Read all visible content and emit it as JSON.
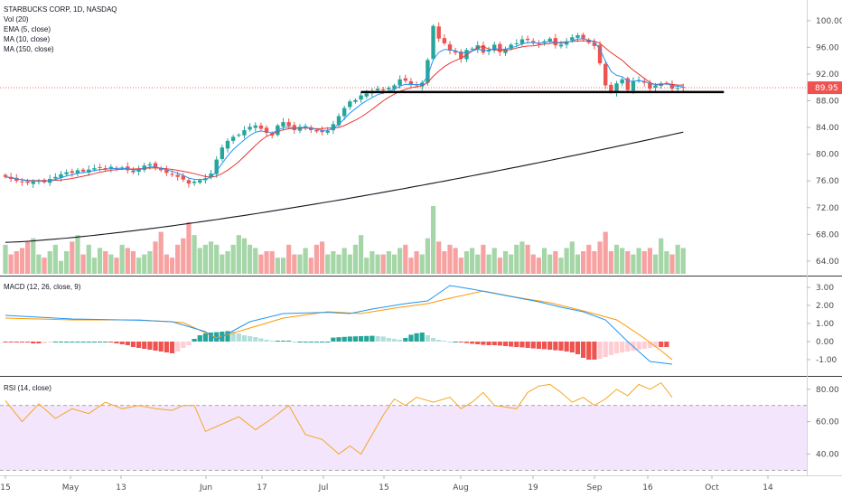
{
  "legend": {
    "main": [
      "STARBUCKS CORP, 1D, NASDAQ",
      "Vol (20)",
      "EMA (5, close)",
      "MA (10, close)",
      "MA (150, close)"
    ],
    "macd": "MACD (12, 26, close, 9)",
    "rsi": "RSI (14, close)"
  },
  "last_price_label": "89.95",
  "colors": {
    "up": "#26a69a",
    "down": "#ef5350",
    "vol_up": "#a5d6a7",
    "vol_down": "#f7a1a1",
    "ema": "#2196f3",
    "ma10": "#e53935",
    "ma150": "#131722",
    "macd_line": "#2196f3",
    "signal_line": "#ff9800",
    "rsi_line": "#f5a623",
    "rsi_band": "#f3e5fc",
    "price_tag": "#ef5350"
  },
  "chart_data": [
    {
      "type": "candlestick",
      "title": "STARBUCKS CORP, 1D, NASDAQ",
      "y_ticks": [
        "100.00",
        "96.00",
        "92.00",
        "88.00",
        "84.00",
        "80.00",
        "76.00",
        "72.00",
        "68.00",
        "64.00"
      ],
      "ylim": [
        62.5,
        102
      ],
      "x_ticks": [
        "15",
        "May",
        "13",
        "Jun",
        "17",
        "Jul",
        "15",
        "Aug",
        "19",
        "Sep",
        "16",
        "Oct",
        "14"
      ],
      "last_price": 89.95,
      "support_line": 89.3,
      "closes": [
        76.6,
        76.3,
        76.0,
        75.8,
        75.7,
        75.9,
        76.0,
        75.8,
        76.3,
        76.6,
        77.0,
        77.3,
        77.2,
        77.6,
        77.4,
        77.7,
        77.9,
        78.0,
        77.8,
        78.1,
        77.9,
        78.0,
        77.6,
        77.3,
        77.8,
        78.3,
        78.5,
        78.0,
        77.6,
        77.2,
        76.9,
        76.6,
        76.2,
        75.6,
        75.9,
        76.1,
        76.4,
        77.1,
        79.2,
        81.0,
        82.0,
        82.6,
        82.9,
        83.6,
        84.1,
        84.3,
        83.8,
        83.2,
        82.8,
        84.3,
        84.8,
        84.2,
        83.6,
        84.1,
        84.2,
        83.6,
        83.4,
        83.3,
        83.5,
        84.5,
        85.7,
        86.9,
        87.9,
        88.1,
        88.8,
        89.1,
        89.4,
        89.8,
        89.6,
        89.9,
        90.3,
        91.2,
        91.0,
        90.4,
        90.3,
        90.7,
        94.1,
        99.2,
        97.3,
        96.6,
        95.5,
        95.2,
        94.3,
        95.6,
        95.8,
        96.3,
        95.2,
        95.6,
        96.4,
        95.3,
        95.8,
        96.4,
        96.6,
        97.2,
        97.1,
        96.7,
        96.5,
        96.9,
        97.3,
        96.3,
        96.4,
        96.9,
        97.5,
        97.8,
        97.3,
        96.7,
        96.2,
        93.6,
        90.3,
        89.4,
        90.6,
        91.2,
        89.6,
        90.9,
        91.1,
        90.7,
        89.8,
        90.3,
        90.6,
        90.6,
        89.8,
        89.9,
        89.95
      ],
      "ema5_approx": [
        75.4,
        95.6,
        89.9
      ],
      "ma150_range": [
        66.8,
        83.3
      ]
    },
    {
      "type": "bar",
      "title": "Vol (20)",
      "values": [
        0.9,
        0.6,
        0.7,
        0.8,
        1.0,
        1.1,
        0.6,
        0.5,
        0.7,
        0.9,
        0.4,
        0.7,
        1.0,
        1.2,
        0.6,
        0.9,
        0.5,
        0.8,
        0.7,
        0.6,
        0.5,
        0.9,
        0.8,
        0.7,
        0.5,
        0.6,
        0.7,
        1.0,
        1.3,
        0.6,
        0.5,
        0.9,
        1.1,
        1.6,
        1.2,
        0.8,
        0.9,
        1.0,
        0.9,
        0.6,
        0.7,
        0.9,
        1.2,
        1.1,
        0.9,
        0.8,
        0.6,
        0.7,
        0.7,
        0.5,
        0.5,
        0.9,
        0.6,
        0.6,
        0.8,
        0.5,
        0.9,
        1.0,
        0.6,
        0.7,
        0.6,
        0.8,
        0.6,
        0.9,
        1.2,
        0.5,
        0.7,
        0.6,
        0.6,
        0.7,
        0.6,
        0.8,
        0.9,
        0.5,
        0.7,
        0.6,
        1.1,
        2.1,
        1.0,
        0.7,
        0.9,
        0.8,
        0.5,
        0.7,
        0.8,
        0.6,
        0.9,
        0.6,
        0.8,
        0.5,
        0.7,
        0.6,
        0.9,
        1.0,
        0.9,
        0.6,
        0.5,
        0.8,
        0.6,
        0.7,
        0.5,
        0.8,
        1.0,
        0.6,
        0.7,
        0.9,
        0.7,
        1.0,
        1.3,
        0.7,
        0.9,
        0.8,
        0.7,
        0.6,
        0.8,
        0.7,
        0.8,
        0.6,
        1.1,
        0.7,
        0.6,
        0.9,
        0.8
      ]
    },
    {
      "type": "line",
      "title": "MACD (12, 26, close, 9)",
      "y_ticks": [
        "3.00",
        "2.00",
        "1.00",
        "0.00",
        "-1.00"
      ],
      "ylim": [
        -1.8,
        3.4
      ],
      "series": [
        {
          "name": "MACD",
          "points": [
            [
              0,
              1.45
            ],
            [
              12,
              1.25
            ],
            [
              24,
              1.18
            ],
            [
              30,
              1.1
            ],
            [
              36,
              0.55
            ],
            [
              38,
              0.1
            ],
            [
              44,
              1.1
            ],
            [
              50,
              1.55
            ],
            [
              58,
              1.62
            ],
            [
              62,
              1.55
            ],
            [
              66,
              1.8
            ],
            [
              72,
              2.1
            ],
            [
              76,
              2.25
            ],
            [
              80,
              3.1
            ],
            [
              84,
              2.9
            ],
            [
              90,
              2.55
            ],
            [
              96,
              2.2
            ],
            [
              100,
              1.9
            ],
            [
              104,
              1.65
            ],
            [
              108,
              1.2
            ],
            [
              112,
              0.0
            ],
            [
              116,
              -1.1
            ],
            [
              120,
              -1.25
            ]
          ]
        },
        {
          "name": "Signal",
          "points": [
            [
              0,
              1.3
            ],
            [
              12,
              1.2
            ],
            [
              24,
              1.2
            ],
            [
              32,
              1.05
            ],
            [
              38,
              0.2
            ],
            [
              44,
              0.75
            ],
            [
              50,
              1.3
            ],
            [
              58,
              1.65
            ],
            [
              64,
              1.55
            ],
            [
              70,
              1.85
            ],
            [
              76,
              2.1
            ],
            [
              80,
              2.4
            ],
            [
              86,
              2.8
            ],
            [
              92,
              2.45
            ],
            [
              98,
              2.15
            ],
            [
              104,
              1.7
            ],
            [
              110,
              1.2
            ],
            [
              114,
              0.4
            ],
            [
              118,
              -0.5
            ],
            [
              120,
              -1.0
            ]
          ]
        }
      ],
      "histogram": [
        -0.05,
        -0.05,
        -0.05,
        -0.05,
        -0.05,
        -0.1,
        -0.1,
        -0.08,
        -0.02,
        0.0,
        0.0,
        0.0,
        0.0,
        0.0,
        0.0,
        0.0,
        0.0,
        0.0,
        0.0,
        -0.05,
        -0.1,
        -0.15,
        -0.2,
        -0.3,
        -0.35,
        -0.4,
        -0.45,
        -0.5,
        -0.55,
        -0.6,
        -0.65,
        -0.55,
        -0.35,
        -0.2,
        0.15,
        0.35,
        0.45,
        0.5,
        0.52,
        0.55,
        0.58,
        0.55,
        0.45,
        0.35,
        0.3,
        0.25,
        0.18,
        0.1,
        0.05,
        0.05,
        0.05,
        0.05,
        0.0,
        0.0,
        0.0,
        0.0,
        0.0,
        0.0,
        0.0,
        0.22,
        0.24,
        0.26,
        0.28,
        0.29,
        0.3,
        0.31,
        0.32,
        0.3,
        0.28,
        0.2,
        0.15,
        0.1,
        0.2,
        0.38,
        0.46,
        0.5,
        0.35,
        0.2,
        0.1,
        0.05,
        0.0,
        0.0,
        -0.05,
        -0.08,
        -0.12,
        -0.15,
        -0.18,
        -0.2,
        -0.2,
        -0.22,
        -0.25,
        -0.28,
        -0.3,
        -0.32,
        -0.35,
        -0.38,
        -0.4,
        -0.42,
        -0.45,
        -0.48,
        -0.5,
        -0.55,
        -0.6,
        -0.7,
        -0.9,
        -1.0,
        -1.0,
        -0.95,
        -0.85,
        -0.75,
        -0.65,
        -0.6,
        -0.55,
        -0.5,
        -0.45,
        -0.4,
        -0.35,
        -0.3,
        -0.3,
        -0.3
      ]
    },
    {
      "type": "line",
      "title": "RSI (14, close)",
      "y_ticks": [
        "80.00",
        "60.00",
        "40.00"
      ],
      "ylim": [
        28,
        86
      ],
      "band": [
        30,
        70
      ],
      "points": [
        [
          0,
          73
        ],
        [
          3,
          60
        ],
        [
          6,
          71
        ],
        [
          9,
          62
        ],
        [
          12,
          68
        ],
        [
          15,
          65
        ],
        [
          18,
          72
        ],
        [
          21,
          68
        ],
        [
          24,
          70
        ],
        [
          27,
          68
        ],
        [
          30,
          67
        ],
        [
          32,
          70
        ],
        [
          34,
          70
        ],
        [
          36,
          54
        ],
        [
          38,
          57
        ],
        [
          42,
          63
        ],
        [
          45,
          55
        ],
        [
          48,
          62
        ],
        [
          51,
          70
        ],
        [
          54,
          52
        ],
        [
          57,
          49
        ],
        [
          60,
          40
        ],
        [
          62,
          45
        ],
        [
          64,
          40
        ],
        [
          66,
          52
        ],
        [
          68,
          64
        ],
        [
          70,
          74
        ],
        [
          72,
          70
        ],
        [
          74,
          75
        ],
        [
          77,
          72
        ],
        [
          80,
          75
        ],
        [
          82,
          68
        ],
        [
          84,
          72
        ],
        [
          86,
          78
        ],
        [
          88,
          70
        ],
        [
          90,
          69
        ],
        [
          92,
          68
        ],
        [
          94,
          78
        ],
        [
          96,
          82
        ],
        [
          98,
          83
        ],
        [
          100,
          78
        ],
        [
          102,
          72
        ],
        [
          104,
          75
        ],
        [
          106,
          70
        ],
        [
          108,
          74
        ],
        [
          110,
          80
        ],
        [
          112,
          76
        ],
        [
          114,
          83
        ],
        [
          116,
          80
        ],
        [
          118,
          84
        ],
        [
          120,
          75
        ]
      ]
    }
  ]
}
